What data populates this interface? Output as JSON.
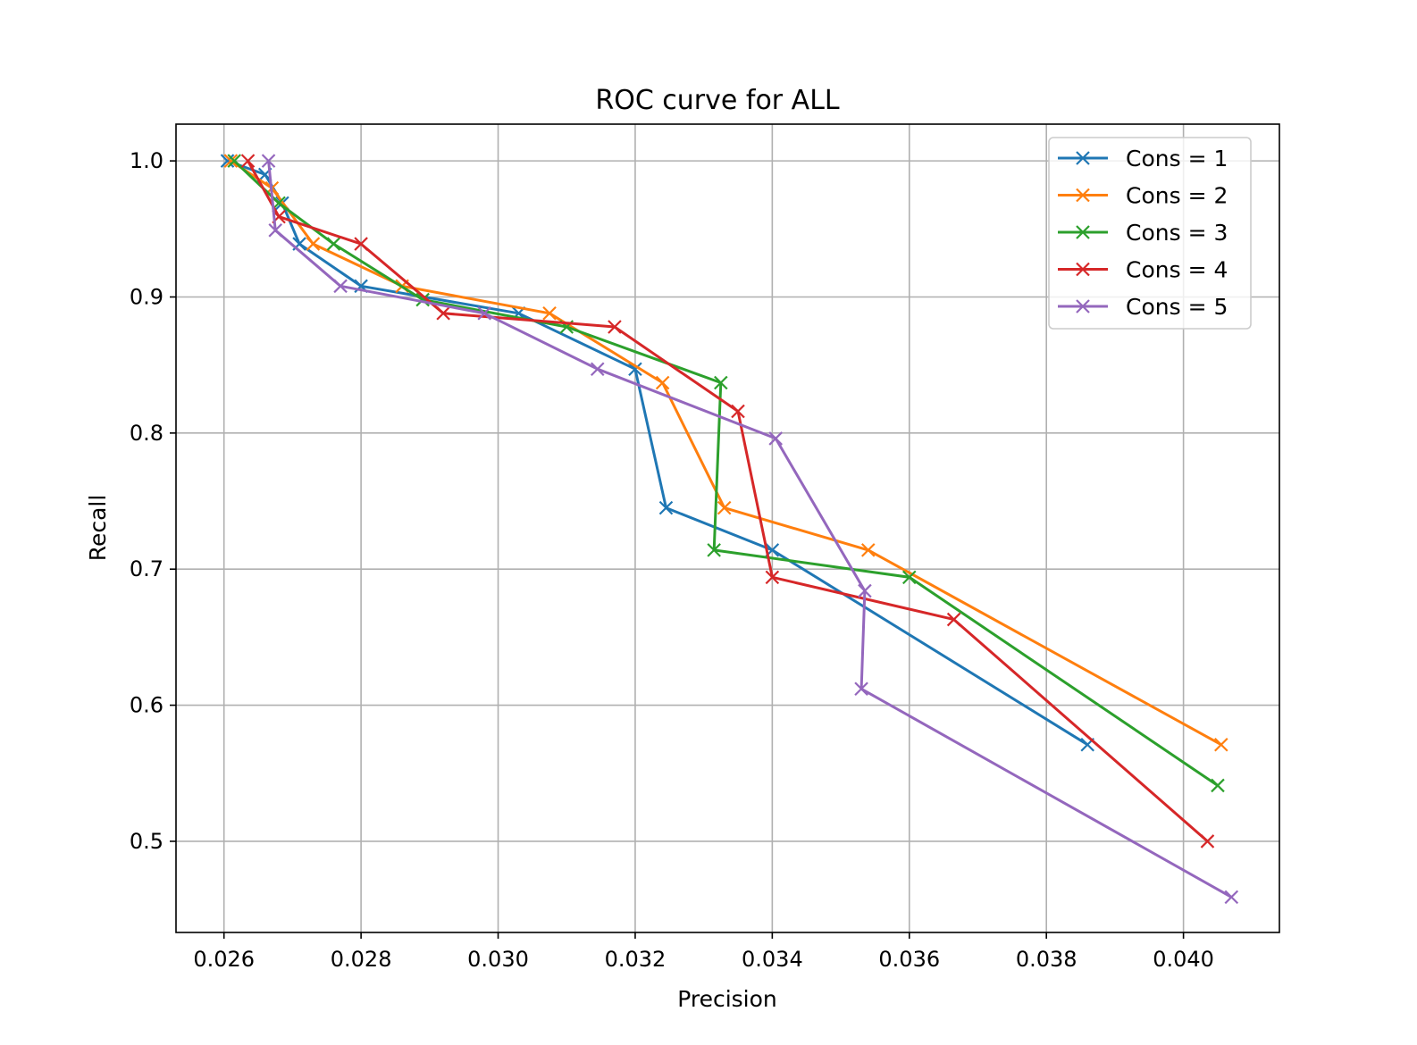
{
  "chart_data": {
    "type": "line",
    "title": "ROC curve for ALL",
    "xlabel": "Precision",
    "ylabel": "Recall",
    "xlim": [
      0.0253,
      0.0414
    ],
    "ylim": [
      0.433,
      1.027
    ],
    "xticks": [
      0.026,
      0.028,
      0.03,
      0.032,
      0.034,
      0.036,
      0.038,
      0.04
    ],
    "xtick_labels": [
      "0.026",
      "0.028",
      "0.030",
      "0.032",
      "0.034",
      "0.036",
      "0.038",
      "0.040"
    ],
    "yticks": [
      0.5,
      0.6,
      0.7,
      0.8,
      0.9,
      1.0
    ],
    "ytick_labels": [
      "0.5",
      "0.6",
      "0.7",
      "0.8",
      "0.9",
      "1.0"
    ],
    "grid": true,
    "legend_position": "top-right",
    "marker": "x",
    "series": [
      {
        "name": "Cons = 1",
        "color": "#1f77b4",
        "points": [
          [
            0.02605,
            1.0
          ],
          [
            0.0266,
            0.99
          ],
          [
            0.02685,
            0.969
          ],
          [
            0.0271,
            0.939
          ],
          [
            0.028,
            0.908
          ],
          [
            0.0303,
            0.888
          ],
          [
            0.032,
            0.847
          ],
          [
            0.03245,
            0.745
          ],
          [
            0.034,
            0.714
          ],
          [
            0.0386,
            0.571
          ]
        ]
      },
      {
        "name": "Cons = 2",
        "color": "#ff7f0e",
        "points": [
          [
            0.0261,
            1.0
          ],
          [
            0.0267,
            0.98
          ],
          [
            0.0273,
            0.939
          ],
          [
            0.0286,
            0.908
          ],
          [
            0.03075,
            0.888
          ],
          [
            0.0324,
            0.837
          ],
          [
            0.0333,
            0.745
          ],
          [
            0.0354,
            0.714
          ],
          [
            0.04055,
            0.571
          ]
        ]
      },
      {
        "name": "Cons = 3",
        "color": "#2ca02c",
        "points": [
          [
            0.02615,
            1.0
          ],
          [
            0.0268,
            0.969
          ],
          [
            0.0276,
            0.939
          ],
          [
            0.0289,
            0.898
          ],
          [
            0.031,
            0.878
          ],
          [
            0.03325,
            0.837
          ],
          [
            0.03315,
            0.714
          ],
          [
            0.036,
            0.694
          ],
          [
            0.0405,
            0.541
          ]
        ]
      },
      {
        "name": "Cons = 4",
        "color": "#d62728",
        "points": [
          [
            0.02635,
            1.0
          ],
          [
            0.0268,
            0.959
          ],
          [
            0.028,
            0.939
          ],
          [
            0.0292,
            0.888
          ],
          [
            0.0317,
            0.878
          ],
          [
            0.0335,
            0.816
          ],
          [
            0.034,
            0.694
          ],
          [
            0.03665,
            0.663
          ],
          [
            0.04035,
            0.5
          ]
        ]
      },
      {
        "name": "Cons = 5",
        "color": "#9467bd",
        "points": [
          [
            0.02665,
            1.0
          ],
          [
            0.02675,
            0.949
          ],
          [
            0.0277,
            0.908
          ],
          [
            0.0298,
            0.888
          ],
          [
            0.03145,
            0.847
          ],
          [
            0.03405,
            0.796
          ],
          [
            0.03535,
            0.684
          ],
          [
            0.0353,
            0.612
          ],
          [
            0.0407,
            0.459
          ]
        ]
      }
    ]
  }
}
